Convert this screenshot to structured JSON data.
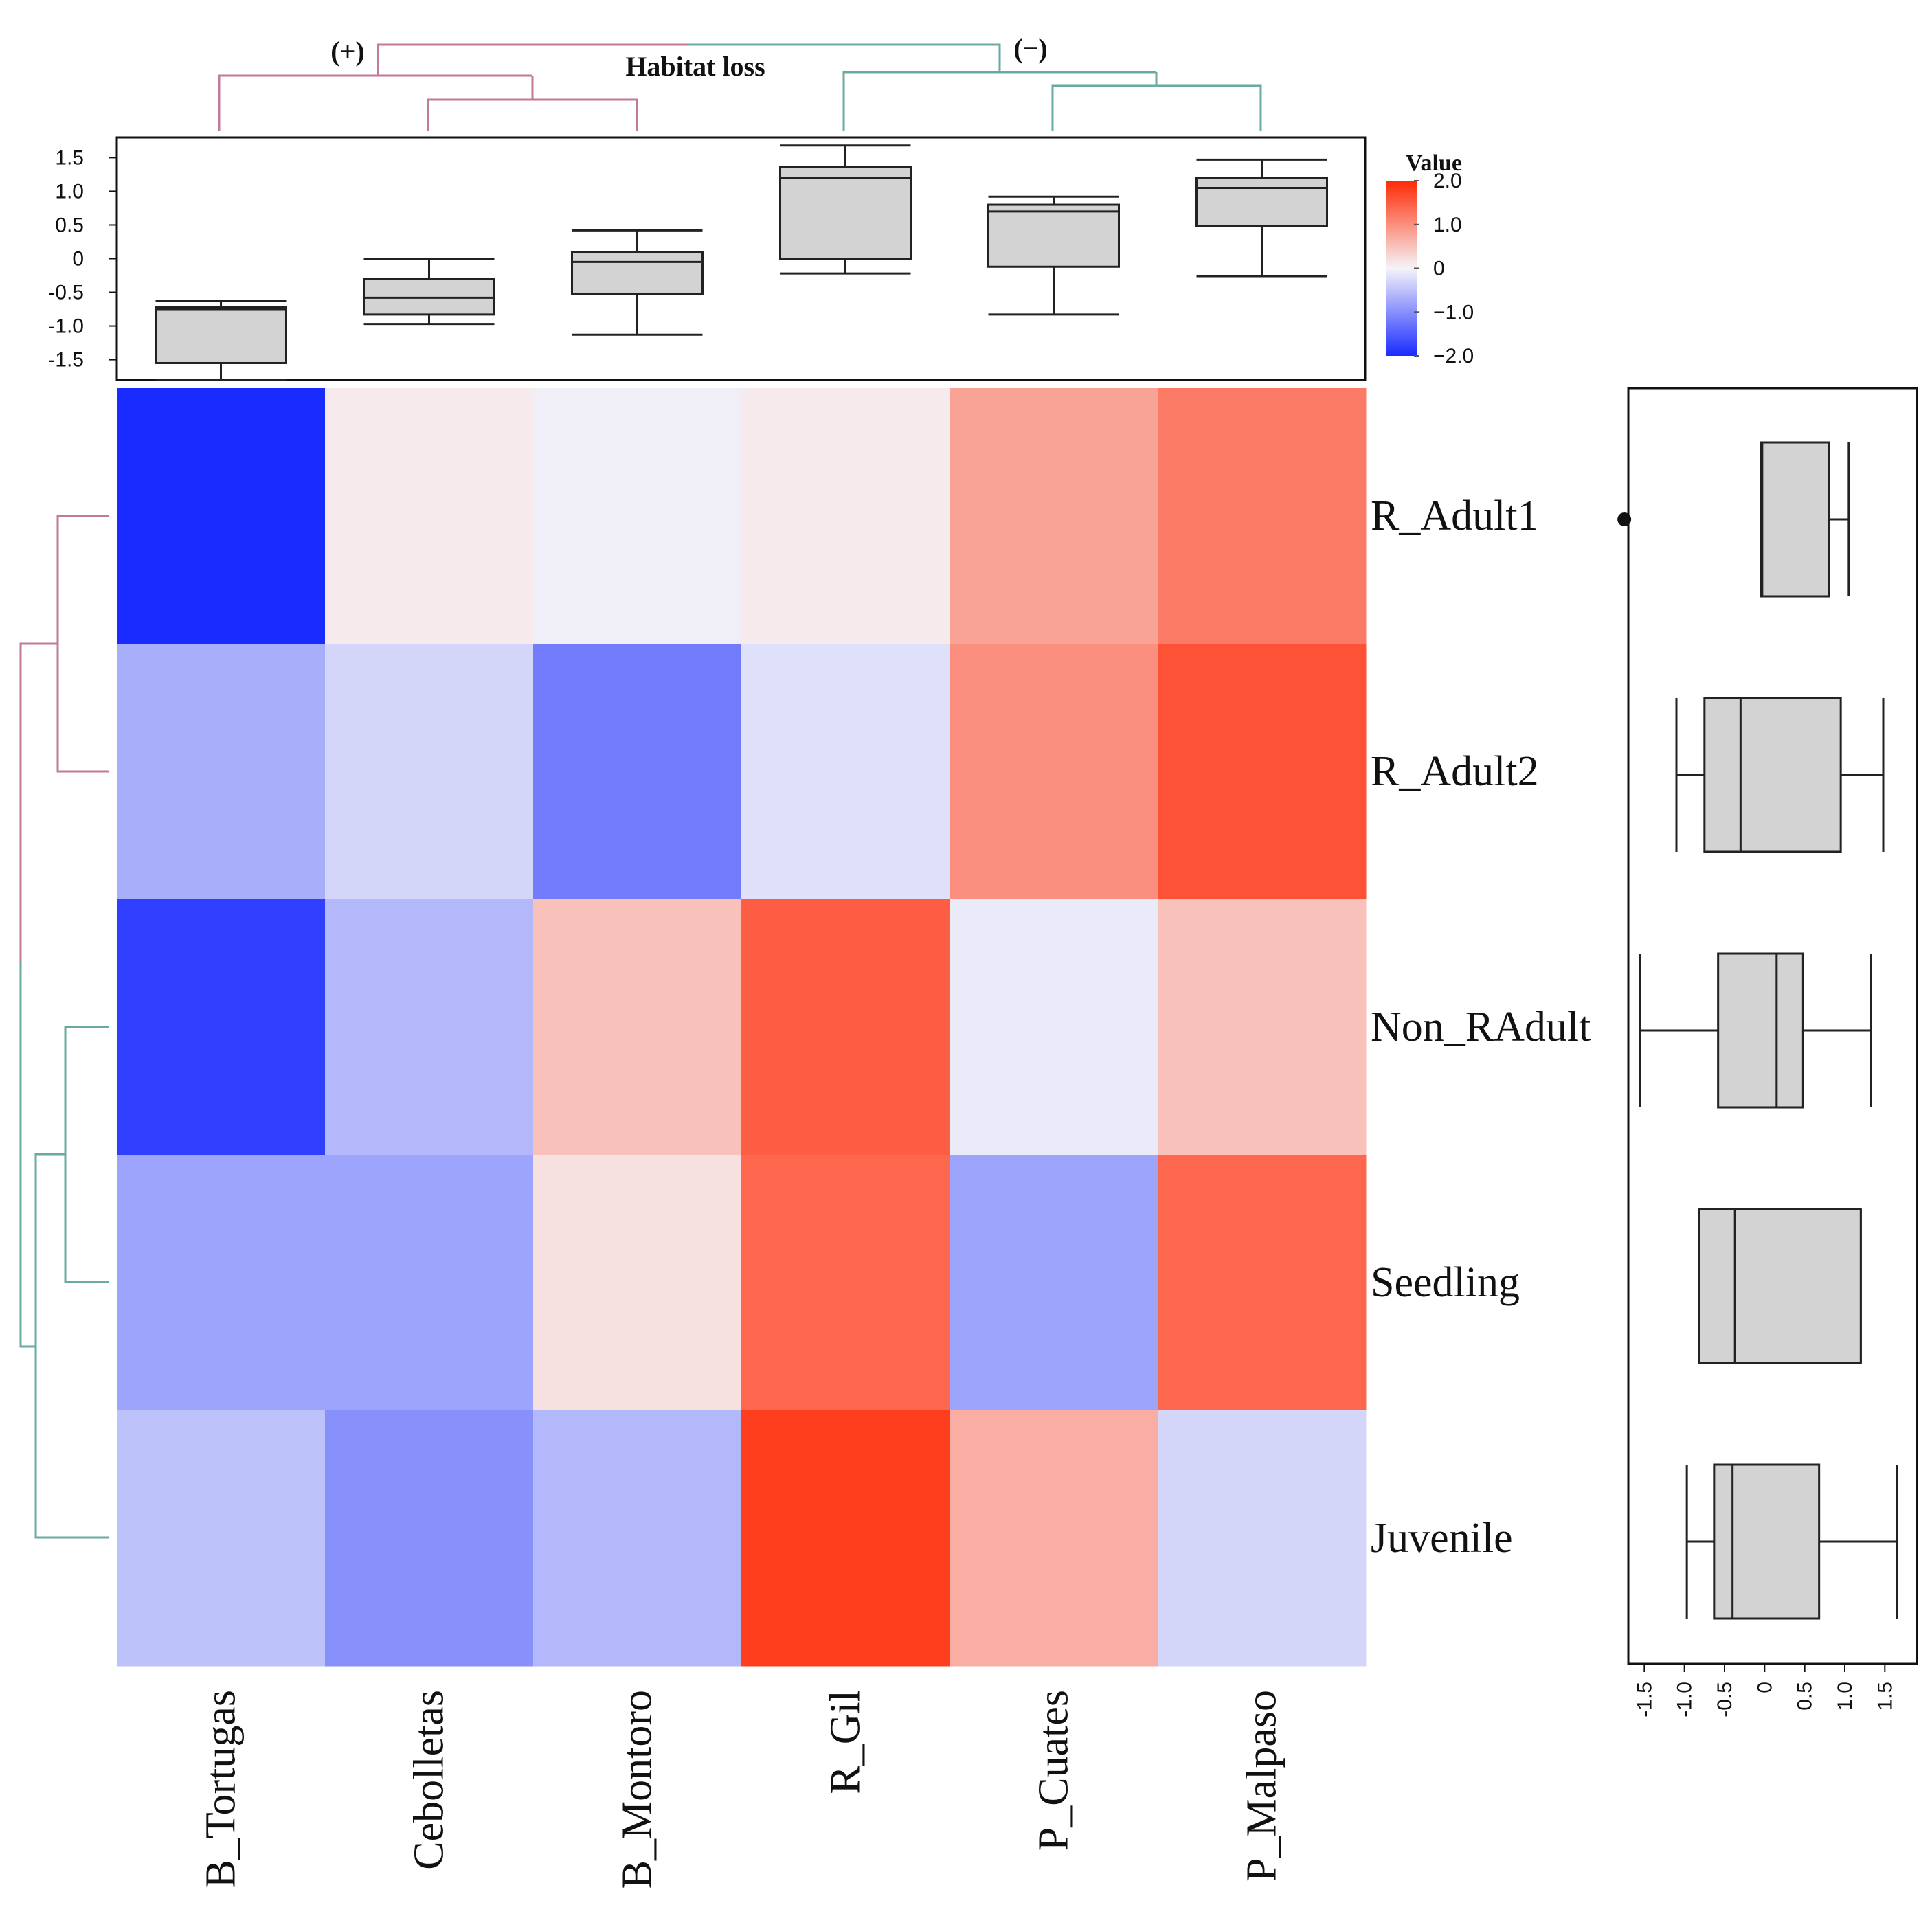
{
  "chart_data": {
    "type": "heatmap",
    "columns": [
      "B_Tortugas",
      "Cebolletas",
      "B_Montoro",
      "R_Gil",
      "P_Cuates",
      "P_Malpaso"
    ],
    "rows": [
      "R_Adult1",
      "R_Adult2",
      "Non_RAdult",
      "Seedling",
      "Juvenile"
    ],
    "values": [
      [
        -2.0,
        0.1,
        -0.05,
        0.1,
        0.8,
        1.2
      ],
      [
        -0.7,
        -0.3,
        -1.2,
        -0.2,
        1.0,
        1.6
      ],
      [
        -1.8,
        -0.6,
        0.5,
        1.5,
        -0.1,
        0.5
      ],
      [
        -0.8,
        -0.8,
        0.2,
        1.4,
        -0.8,
        1.4
      ],
      [
        -0.5,
        -1.0,
        -0.6,
        1.8,
        0.7,
        -0.3
      ]
    ],
    "color_scale": {
      "title": "Value",
      "min": -2.0,
      "max": 2.0,
      "ticks": [
        "2.0",
        "1.0",
        "0",
        "−1.0",
        "−2.0"
      ],
      "tick_values": [
        2,
        1,
        0,
        -1,
        -2
      ],
      "low_color": "#1a2bff",
      "mid_color": "#f5f4f8",
      "high_color": "#ff2a05"
    },
    "column_cluster_label": "Habitat loss",
    "column_cluster_groups": [
      "(+)",
      "(−)"
    ],
    "dendrogram_colors": {
      "positive": "#c2799a",
      "negative": "#6aaaa0"
    },
    "column_boxplots": {
      "ticks": [
        "1.5",
        "1.0",
        "0.5",
        "0",
        "-0.5",
        "-1.0",
        "-1.5"
      ],
      "tick_values": [
        1.5,
        1.0,
        0.5,
        0,
        -0.5,
        -1.0,
        -1.5
      ],
      "ylim": [
        -1.8,
        1.8
      ],
      "stats": [
        {
          "min": -1.8,
          "q1": -1.55,
          "median": -0.75,
          "q3": -0.72,
          "max": -0.63
        },
        {
          "min": -0.97,
          "q1": -0.83,
          "median": -0.58,
          "q3": -0.3,
          "max": -0.01
        },
        {
          "min": -1.13,
          "q1": -0.52,
          "median": -0.05,
          "q3": 0.1,
          "max": 0.42
        },
        {
          "min": -0.22,
          "q1": -0.01,
          "median": 1.2,
          "q3": 1.36,
          "max": 1.68
        },
        {
          "min": -0.83,
          "q1": -0.12,
          "median": 0.7,
          "q3": 0.8,
          "max": 0.92
        },
        {
          "min": -0.26,
          "q1": 0.48,
          "median": 1.05,
          "q3": 1.2,
          "max": 1.47
        }
      ]
    },
    "row_boxplots": {
      "ticks": [
        "-1.5",
        "-1.0",
        "-0.5",
        "0",
        "0.5",
        "1.0",
        "1.5"
      ],
      "tick_values": [
        -1.5,
        -1.0,
        -0.5,
        0,
        0.5,
        1.0,
        1.5
      ],
      "xlim": [
        -1.7,
        1.9
      ],
      "stats": [
        {
          "min": -0.05,
          "q1": -0.05,
          "median": -0.03,
          "q3": 0.8,
          "max": 1.05,
          "outliers": [
            -1.75
          ]
        },
        {
          "min": -1.1,
          "q1": -0.75,
          "median": -0.3,
          "q3": 0.95,
          "max": 1.48,
          "outliers": []
        },
        {
          "min": -1.55,
          "q1": -0.58,
          "median": 0.15,
          "q3": 0.48,
          "max": 1.33,
          "outliers": []
        },
        {
          "min": -0.82,
          "q1": -0.82,
          "median": -0.37,
          "q3": 1.2,
          "max": 1.2,
          "outliers": []
        },
        {
          "min": -0.97,
          "q1": -0.63,
          "median": -0.4,
          "q3": 0.68,
          "max": 1.65,
          "outliers": []
        }
      ]
    }
  }
}
